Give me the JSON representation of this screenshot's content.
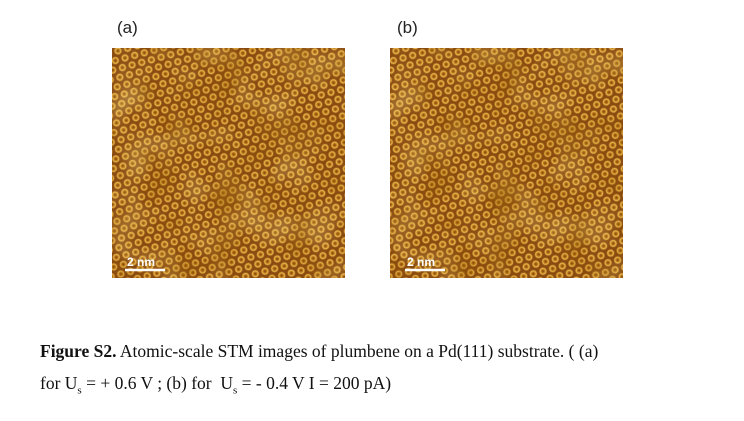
{
  "panels": [
    {
      "label": "(a)",
      "scale_bar": "2 nm"
    },
    {
      "label": "(b)",
      "scale_bar": "2 nm"
    }
  ],
  "caption": {
    "lead": "Figure S2.",
    "line1": "Atomic-scale STM images of plumbene on a Pd(111) substrate. ( (a)",
    "line2_a": "for U",
    "sub_a": "s",
    "line2_b": " = + 0.6 V ; (b) for  U",
    "sub_b": "s",
    "line2_c": " = - 0.4 V I = 200 pA)"
  }
}
